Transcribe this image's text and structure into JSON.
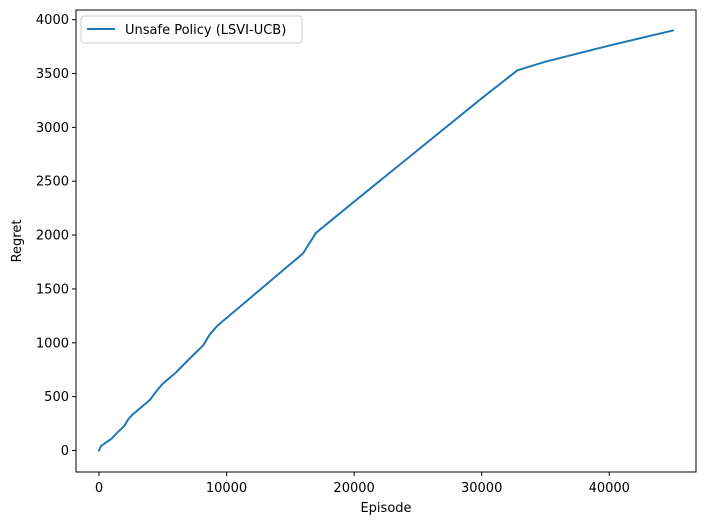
{
  "chart_data": {
    "type": "line",
    "xlabel": "Episode",
    "ylabel": "Regret",
    "xlim": [
      -1800,
      46800
    ],
    "ylim": [
      -200,
      4090
    ],
    "xticks": [
      0,
      10000,
      20000,
      30000,
      40000
    ],
    "yticks": [
      0,
      500,
      1000,
      1500,
      2000,
      2500,
      3000,
      3500,
      4000
    ],
    "grid": false,
    "legend_position": "top-left",
    "series": [
      {
        "name": "Unsafe Policy (LSVI-UCB)",
        "color": "#1f77b4",
        "x": [
          0,
          150,
          500,
          1000,
          1300,
          2000,
          2300,
          2600,
          3000,
          4000,
          4500,
          5000,
          6000,
          7000,
          8200,
          8700,
          9300,
          10000,
          12000,
          14000,
          16000,
          17000,
          20000,
          25000,
          30000,
          32800,
          35000,
          40000,
          45000
        ],
        "y": [
          0,
          40,
          70,
          110,
          150,
          230,
          290,
          330,
          370,
          470,
          550,
          620,
          720,
          840,
          980,
          1080,
          1160,
          1230,
          1430,
          1630,
          1830,
          2020,
          2310,
          2790,
          3270,
          3530,
          3610,
          3760,
          3900
        ]
      }
    ]
  }
}
